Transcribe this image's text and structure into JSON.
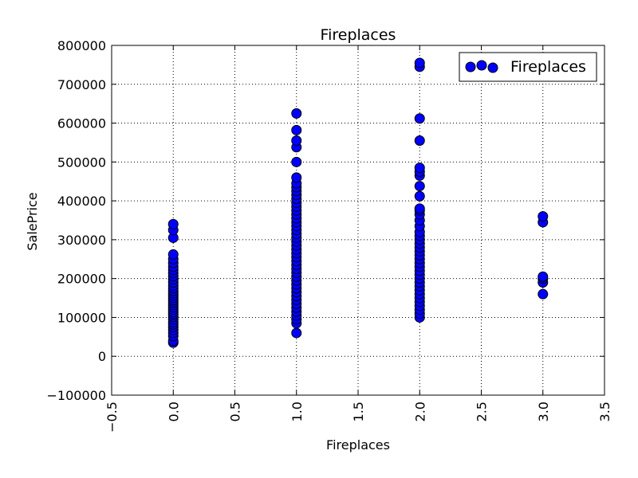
{
  "chart_data": {
    "type": "scatter",
    "title": "Fireplaces",
    "xlabel": "Fireplaces",
    "ylabel": "SalePrice",
    "xlim": [
      -0.5,
      3.5
    ],
    "ylim": [
      -100000,
      800000
    ],
    "xticks": [
      -0.5,
      0.0,
      0.5,
      1.0,
      1.5,
      2.0,
      2.5,
      3.0,
      3.5
    ],
    "xtick_labels": [
      "−0.5",
      "0.0",
      "0.5",
      "1.0",
      "1.5",
      "2.0",
      "2.5",
      "3.0",
      "3.5"
    ],
    "yticks": [
      -100000,
      0,
      100000,
      200000,
      300000,
      400000,
      500000,
      600000,
      700000,
      800000
    ],
    "ytick_labels": [
      "−100000",
      "0",
      "100000",
      "200000",
      "300000",
      "400000",
      "500000",
      "600000",
      "700000",
      "800000"
    ],
    "grid": true,
    "legend_position": "top-right",
    "marker_color": "#0000ff",
    "series": [
      {
        "name": "Fireplaces",
        "points": [
          [
            0,
            35000
          ],
          [
            0,
            40000
          ],
          [
            0,
            52000
          ],
          [
            0,
            60000
          ],
          [
            0,
            68000
          ],
          [
            0,
            75000
          ],
          [
            0,
            82000
          ],
          [
            0,
            88000
          ],
          [
            0,
            95000
          ],
          [
            0,
            102000
          ],
          [
            0,
            108000
          ],
          [
            0,
            114000
          ],
          [
            0,
            120000
          ],
          [
            0,
            126000
          ],
          [
            0,
            132000
          ],
          [
            0,
            138000
          ],
          [
            0,
            144000
          ],
          [
            0,
            150000
          ],
          [
            0,
            156000
          ],
          [
            0,
            162000
          ],
          [
            0,
            168000
          ],
          [
            0,
            175000
          ],
          [
            0,
            182000
          ],
          [
            0,
            190000
          ],
          [
            0,
            198000
          ],
          [
            0,
            206000
          ],
          [
            0,
            214000
          ],
          [
            0,
            222000
          ],
          [
            0,
            230000
          ],
          [
            0,
            240000
          ],
          [
            0,
            250000
          ],
          [
            0,
            262000
          ],
          [
            0,
            305000
          ],
          [
            0,
            325000
          ],
          [
            0,
            340000
          ],
          [
            1,
            60000
          ],
          [
            1,
            85000
          ],
          [
            1,
            95000
          ],
          [
            1,
            105000
          ],
          [
            1,
            115000
          ],
          [
            1,
            125000
          ],
          [
            1,
            135000
          ],
          [
            1,
            145000
          ],
          [
            1,
            155000
          ],
          [
            1,
            165000
          ],
          [
            1,
            175000
          ],
          [
            1,
            185000
          ],
          [
            1,
            195000
          ],
          [
            1,
            205000
          ],
          [
            1,
            215000
          ],
          [
            1,
            225000
          ],
          [
            1,
            235000
          ],
          [
            1,
            245000
          ],
          [
            1,
            255000
          ],
          [
            1,
            265000
          ],
          [
            1,
            275000
          ],
          [
            1,
            285000
          ],
          [
            1,
            295000
          ],
          [
            1,
            305000
          ],
          [
            1,
            315000
          ],
          [
            1,
            325000
          ],
          [
            1,
            335000
          ],
          [
            1,
            345000
          ],
          [
            1,
            355000
          ],
          [
            1,
            365000
          ],
          [
            1,
            375000
          ],
          [
            1,
            385000
          ],
          [
            1,
            395000
          ],
          [
            1,
            405000
          ],
          [
            1,
            415000
          ],
          [
            1,
            425000
          ],
          [
            1,
            435000
          ],
          [
            1,
            445000
          ],
          [
            1,
            460000
          ],
          [
            1,
            500000
          ],
          [
            1,
            538000
          ],
          [
            1,
            555000
          ],
          [
            1,
            582000
          ],
          [
            1,
            625000
          ],
          [
            2,
            100000
          ],
          [
            2,
            110000
          ],
          [
            2,
            120000
          ],
          [
            2,
            130000
          ],
          [
            2,
            140000
          ],
          [
            2,
            150000
          ],
          [
            2,
            160000
          ],
          [
            2,
            170000
          ],
          [
            2,
            180000
          ],
          [
            2,
            190000
          ],
          [
            2,
            200000
          ],
          [
            2,
            210000
          ],
          [
            2,
            220000
          ],
          [
            2,
            230000
          ],
          [
            2,
            240000
          ],
          [
            2,
            250000
          ],
          [
            2,
            260000
          ],
          [
            2,
            270000
          ],
          [
            2,
            280000
          ],
          [
            2,
            290000
          ],
          [
            2,
            300000
          ],
          [
            2,
            310000
          ],
          [
            2,
            320000
          ],
          [
            2,
            335000
          ],
          [
            2,
            350000
          ],
          [
            2,
            365000
          ],
          [
            2,
            375000
          ],
          [
            2,
            380000
          ],
          [
            2,
            412000
          ],
          [
            2,
            438000
          ],
          [
            2,
            465000
          ],
          [
            2,
            475000
          ],
          [
            2,
            485000
          ],
          [
            2,
            555000
          ],
          [
            2,
            612000
          ],
          [
            2,
            745000
          ],
          [
            2,
            755000
          ],
          [
            3,
            160000
          ],
          [
            3,
            190000
          ],
          [
            3,
            200000
          ],
          [
            3,
            205000
          ],
          [
            3,
            345000
          ],
          [
            3,
            360000
          ]
        ]
      }
    ]
  }
}
